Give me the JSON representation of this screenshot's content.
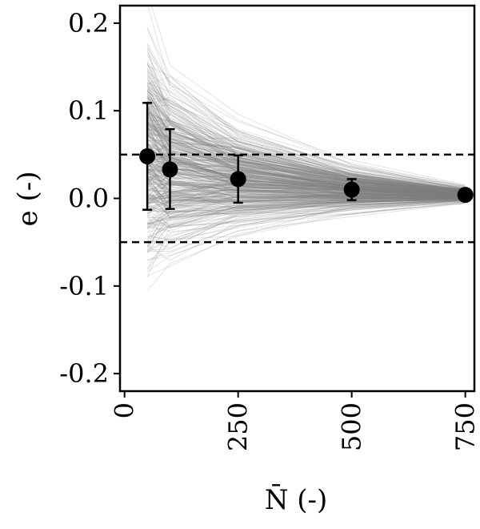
{
  "chart_data": {
    "type": "scatter",
    "xlabel": "N̄ (-)",
    "ylabel": "e (-)",
    "xlim": [
      -10,
      770
    ],
    "ylim": [
      -0.22,
      0.22
    ],
    "x_ticks": [
      0,
      250,
      500,
      750
    ],
    "x_tick_labels": [
      "0",
      "250",
      "500",
      "750"
    ],
    "y_ticks": [
      -0.2,
      -0.1,
      0.0,
      0.1,
      0.2
    ],
    "y_tick_labels": [
      "-0.2",
      "-0.1",
      "0.0",
      "0.1",
      "0.2"
    ],
    "x_tick_rotation": "vertical",
    "grid": false,
    "legend": "none",
    "reference_lines": [
      {
        "y": 0.05,
        "style": "dashed",
        "color": "#000000"
      },
      {
        "y": -0.05,
        "style": "dashed",
        "color": "#000000"
      }
    ],
    "points": {
      "color": "#000000",
      "x": [
        50,
        100,
        250,
        500,
        750
      ],
      "y": [
        0.048,
        0.033,
        0.022,
        0.01,
        0.004
      ],
      "y_err_low": [
        -0.013,
        -0.012,
        -0.005,
        -0.002,
        0.0
      ],
      "y_err_high": [
        0.109,
        0.079,
        0.049,
        0.022,
        0.008
      ]
    },
    "background_trajectories": {
      "color": "#808080",
      "x": [
        50,
        100,
        250,
        500,
        750
      ],
      "description_shown": false
    }
  }
}
